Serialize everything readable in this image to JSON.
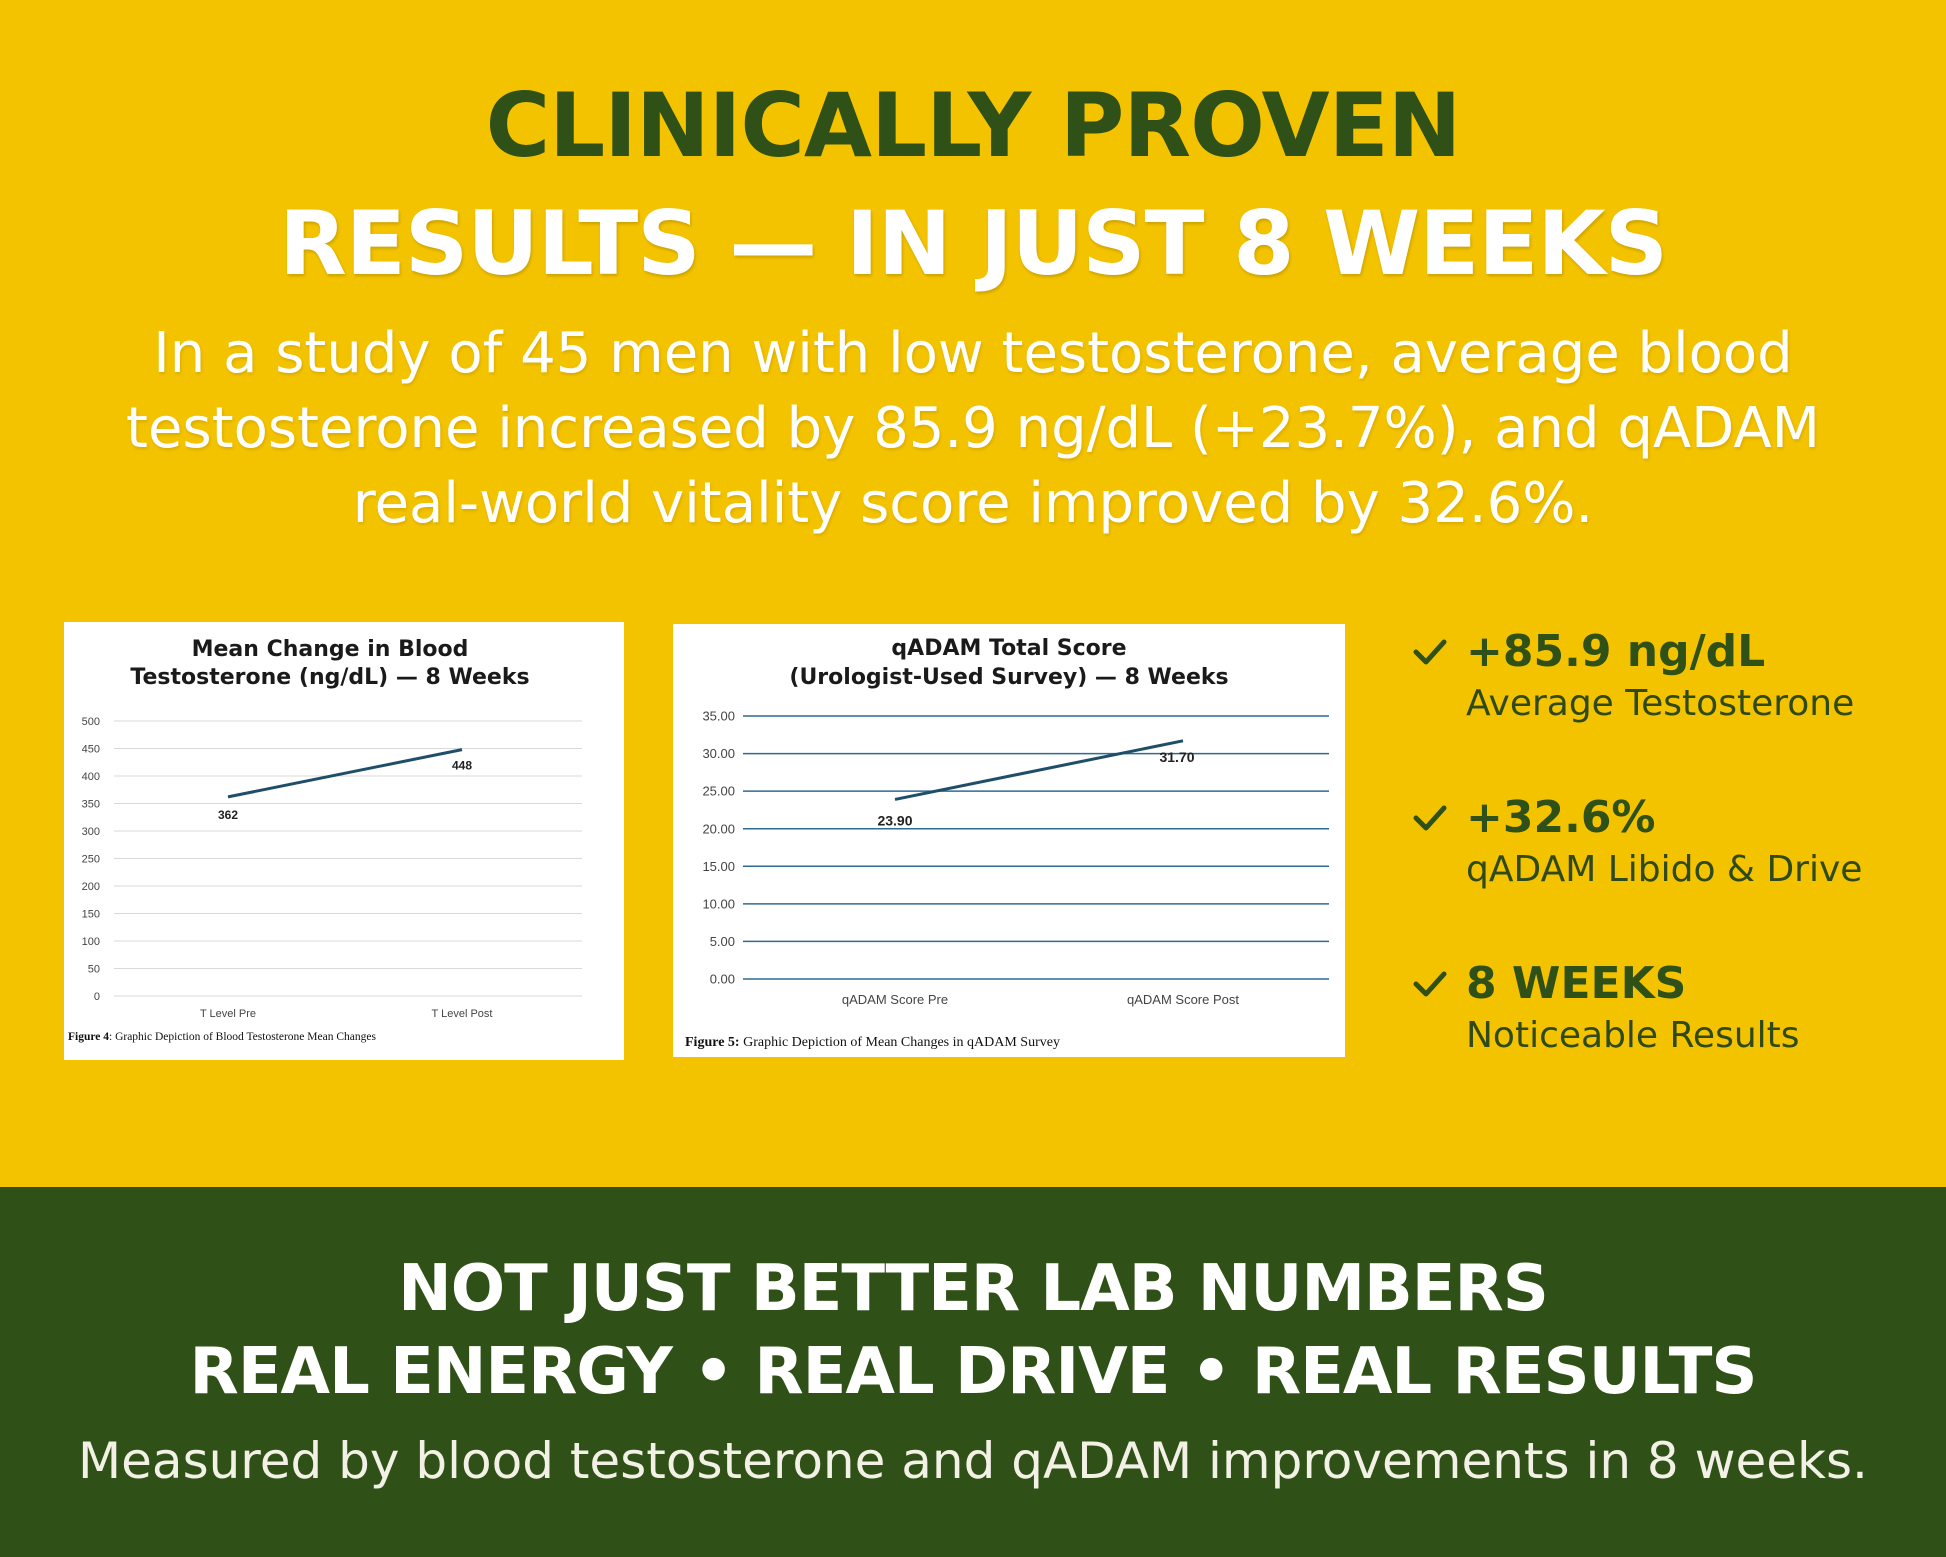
{
  "colors": {
    "yellow_bg": "#F4C300",
    "dark_green": "#2F5016",
    "white": "#FFFFFF",
    "line_color": "#1F4E68",
    "grid_color": "#2E6A96"
  },
  "header": {
    "line1": "CLINICALLY PROVEN",
    "line2": "RESULTS — IN JUST 8 WEEKS",
    "intro": "In a study of 45 men with low testosterone, average blood testosterone increased by 85.9 ng/dL (+23.7%), and qADAM real-world vitality score improved by 32.6%."
  },
  "chart_data": [
    {
      "type": "line",
      "title": [
        "Mean Change in Blood",
        "Testosterone (ng/dL) — 8 Weeks"
      ],
      "categories": [
        "T Level Pre",
        "T Level Post"
      ],
      "series": [
        {
          "values": [
            362,
            448
          ]
        }
      ],
      "data_labels": [
        "362",
        "448"
      ],
      "yticks": [
        "500",
        "450",
        "400",
        "350",
        "300",
        "250",
        "200",
        "150",
        "100",
        "50",
        "0"
      ],
      "ylim": [
        0,
        500
      ],
      "grid": true,
      "caption_bold": "Figure 4",
      "caption_rest": ": Graphic Depiction of Blood Testosterone Mean Changes"
    },
    {
      "type": "line",
      "title": [
        "qADAM Total Score",
        "(Urologist-Used Survey) — 8 Weeks"
      ],
      "categories": [
        "qADAM Score Pre",
        "qADAM Score Post"
      ],
      "series": [
        {
          "values": [
            23.9,
            31.7
          ]
        }
      ],
      "data_labels": [
        "23.90",
        "31.70"
      ],
      "yticks": [
        "35.00",
        "30.00",
        "25.00",
        "20.00",
        "15.00",
        "10.00",
        "5.00",
        "0.00"
      ],
      "ylim": [
        0,
        35
      ],
      "grid": true,
      "caption_bold": "Figure 5:",
      "caption_rest": " Graphic Depiction of Mean Changes in qADAM Survey"
    }
  ],
  "stats": [
    {
      "icon": "check-icon",
      "value": "+85.9 ng/dL",
      "label": "Average Testosterone"
    },
    {
      "icon": "check-icon",
      "value": "+32.6%",
      "label": "qADAM Libido & Drive"
    },
    {
      "icon": "check-icon",
      "value": "8 WEEKS",
      "label": "Noticeable Results"
    }
  ],
  "footer": {
    "line1": "NOT JUST BETTER LAB NUMBERS",
    "line2": "REAL ENERGY • REAL DRIVE • REAL RESULTS",
    "line3": "Measured by blood testosterone and qADAM improvements in 8 weeks."
  }
}
